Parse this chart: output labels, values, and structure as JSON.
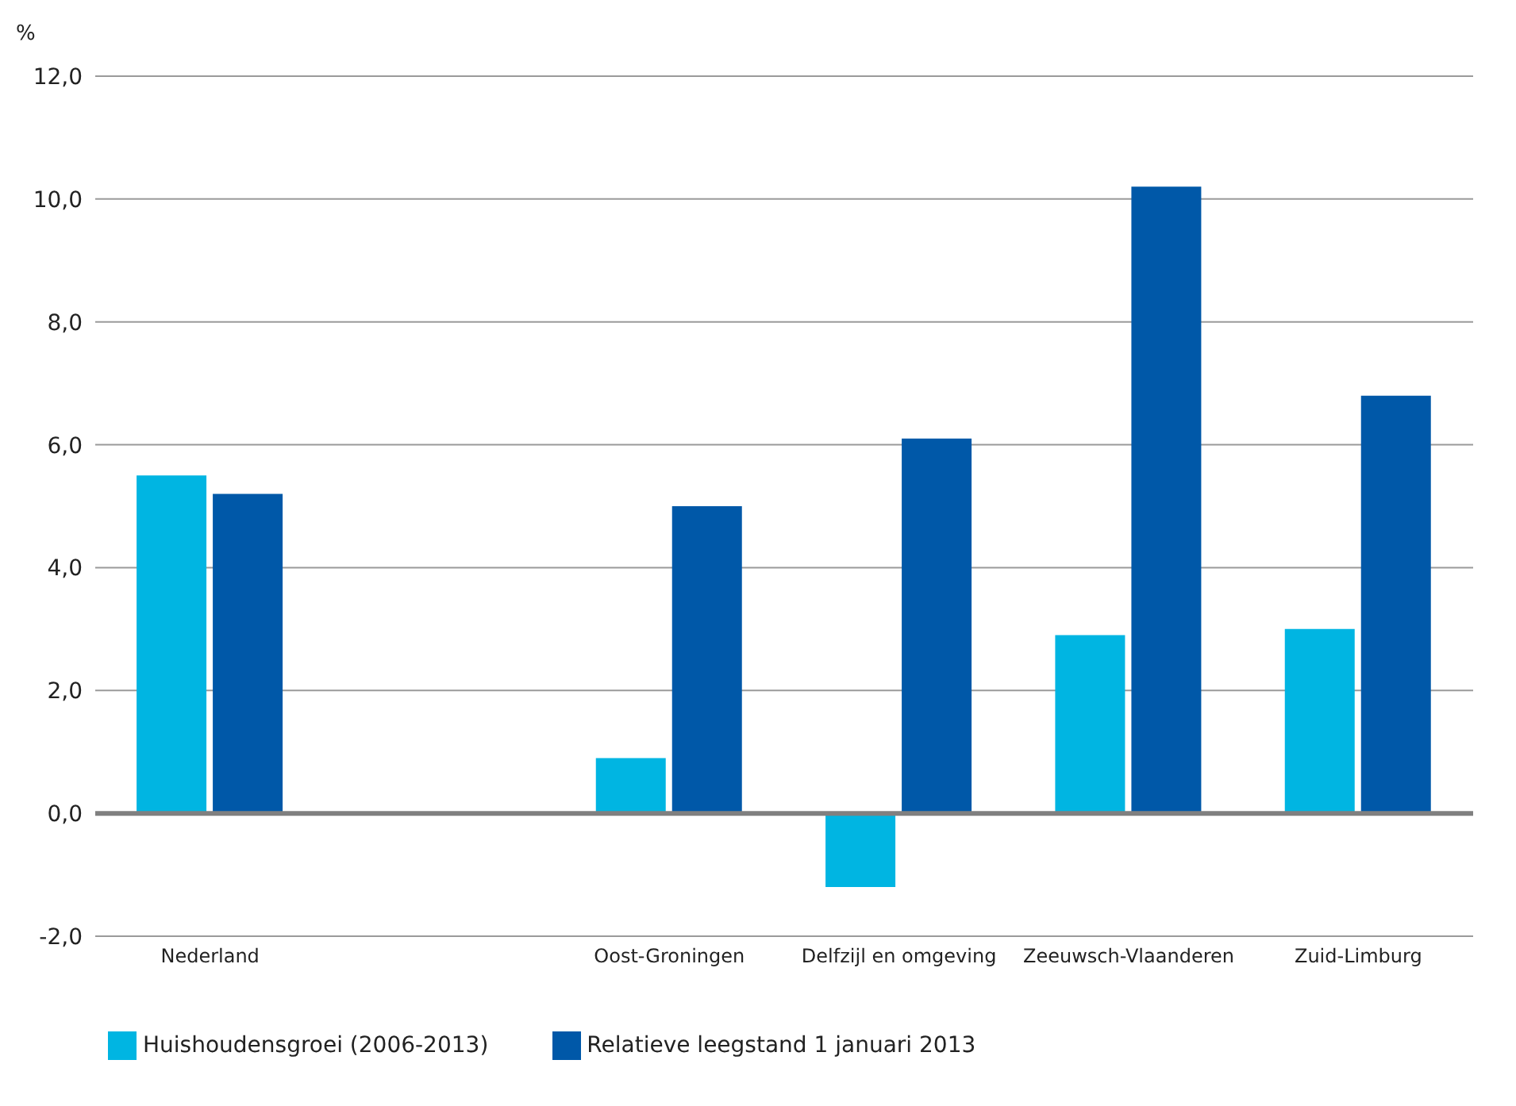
{
  "chart_data": {
    "type": "bar",
    "ylabel": "%",
    "categories": [
      "Nederland",
      null,
      "Oost-Groningen",
      "Delfzijl en omgeving",
      "Zeeuwsch-Vlaanderen",
      "Zuid-Limburg"
    ],
    "series": [
      {
        "name": "Huishoudensgroei (2006-2013)",
        "color": "#00b5e2",
        "values": [
          5.5,
          null,
          0.9,
          -1.2,
          2.9,
          3.0
        ]
      },
      {
        "name": "Relatieve leegstand 1 januari 2013",
        "color": "#0058a8",
        "values": [
          5.2,
          null,
          5.0,
          6.1,
          10.2,
          6.8
        ]
      }
    ],
    "ylim": [
      -2,
      12
    ],
    "yticks": [
      {
        "value": -2,
        "label": "-2,0"
      },
      {
        "value": 0,
        "label": "0,0"
      },
      {
        "value": 2,
        "label": "2,0"
      },
      {
        "value": 4,
        "label": "4,0"
      },
      {
        "value": 6,
        "label": "6,0"
      },
      {
        "value": 8,
        "label": "8,0"
      },
      {
        "value": 10,
        "label": "10,0"
      },
      {
        "value": 12,
        "label": "12,0"
      }
    ],
    "ref_lines": [
      {
        "axis": "y",
        "value": 0,
        "color": "#808080"
      }
    ],
    "grid": "y",
    "legend": "bottom"
  }
}
